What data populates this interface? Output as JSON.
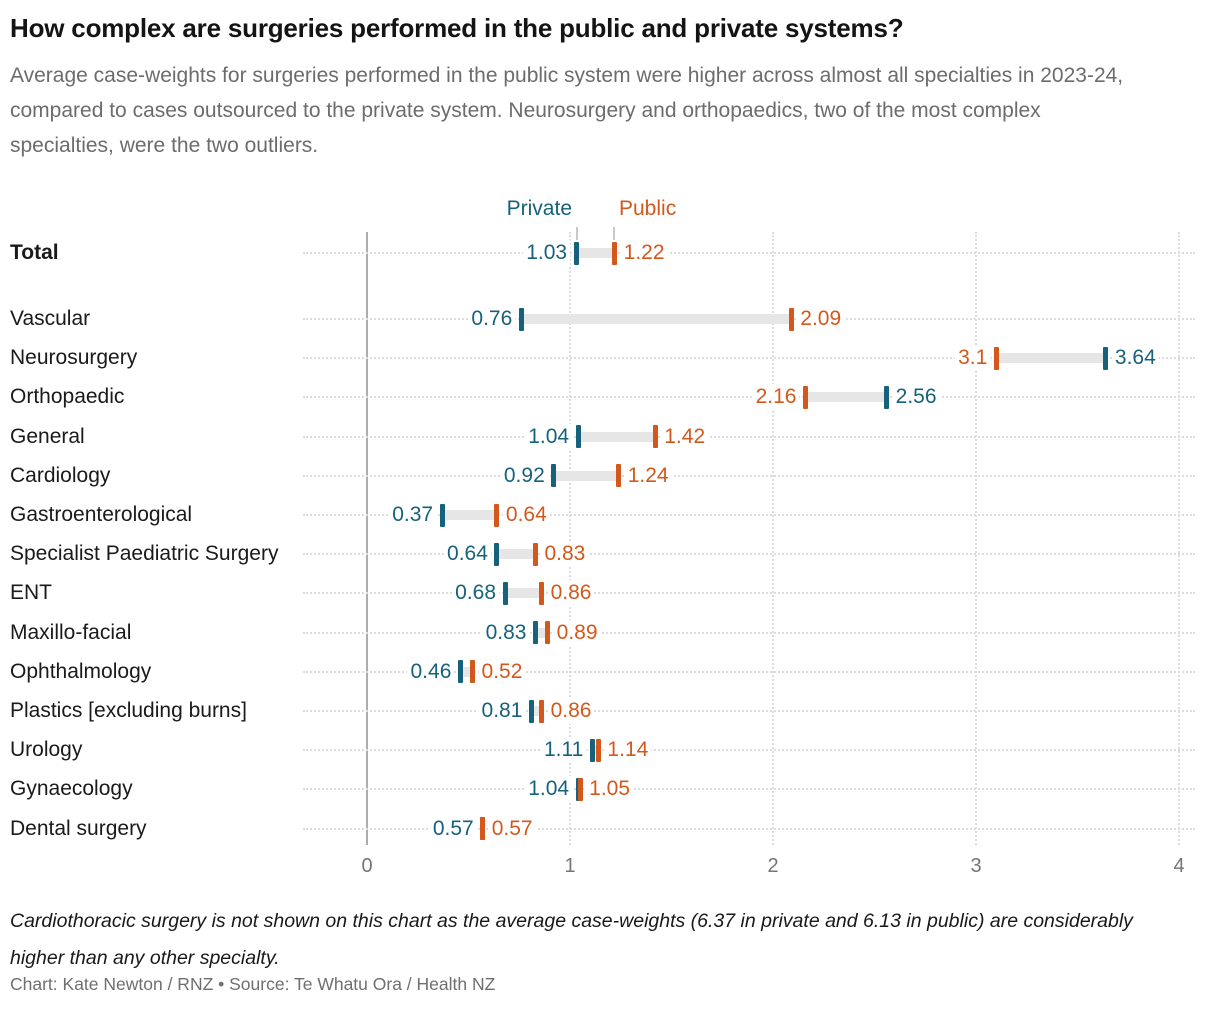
{
  "header": {
    "title": "How complex are surgeries performed in the public and private systems?",
    "subtitle": "Average case-weights for surgeries performed in the public system were higher across almost all specialties in 2023-24, compared to cases outsourced to the private system. Neurosurgery and orthopaedics, two of the most complex specialties, were the two outliers."
  },
  "legend": {
    "private_label": "Private",
    "public_label": "Public"
  },
  "chart_data": {
    "type": "dumbbell",
    "title": "How complex are surgeries performed in the public and private systems?",
    "series_names": [
      "Private",
      "Public"
    ],
    "x_axis": {
      "ticks": [
        "0",
        "1",
        "2",
        "3",
        "4"
      ],
      "tick_values": [
        0,
        1,
        2,
        3,
        4
      ],
      "range": [
        0,
        4
      ],
      "grid": "dotted"
    },
    "colors": {
      "private": "#16617c",
      "public": "#d4581c",
      "connector": "#e6e6e6"
    },
    "rows": [
      {
        "label": "Total",
        "bold": true,
        "group_gap_after": true,
        "private": 1.03,
        "public": 1.22,
        "private_display": "1.03",
        "public_display": "1.22"
      },
      {
        "label": "Vascular",
        "private": 0.76,
        "public": 2.09,
        "private_display": "0.76",
        "public_display": "2.09"
      },
      {
        "label": "Neurosurgery",
        "private": 3.64,
        "public": 3.1,
        "private_display": "3.64",
        "public_display": "3.1"
      },
      {
        "label": "Orthopaedic",
        "private": 2.56,
        "public": 2.16,
        "private_display": "2.56",
        "public_display": "2.16"
      },
      {
        "label": "General",
        "private": 1.04,
        "public": 1.42,
        "private_display": "1.04",
        "public_display": "1.42"
      },
      {
        "label": "Cardiology",
        "private": 0.92,
        "public": 1.24,
        "private_display": "0.92",
        "public_display": "1.24"
      },
      {
        "label": "Gastroenterological",
        "private": 0.37,
        "public": 0.64,
        "private_display": "0.37",
        "public_display": "0.64"
      },
      {
        "label": "Specialist Paediatric Surgery",
        "private": 0.64,
        "public": 0.83,
        "private_display": "0.64",
        "public_display": "0.83"
      },
      {
        "label": "ENT",
        "private": 0.68,
        "public": 0.86,
        "private_display": "0.68",
        "public_display": "0.86"
      },
      {
        "label": "Maxillo-facial",
        "private": 0.83,
        "public": 0.89,
        "private_display": "0.83",
        "public_display": "0.89"
      },
      {
        "label": "Ophthalmology",
        "private": 0.46,
        "public": 0.52,
        "private_display": "0.46",
        "public_display": "0.52"
      },
      {
        "label": "Plastics [excluding burns]",
        "private": 0.81,
        "public": 0.86,
        "private_display": "0.81",
        "public_display": "0.86"
      },
      {
        "label": "Urology",
        "private": 1.11,
        "public": 1.14,
        "private_display": "1.11",
        "public_display": "1.14"
      },
      {
        "label": "Gynaecology",
        "private": 1.04,
        "public": 1.05,
        "private_display": "1.04",
        "public_display": "1.05"
      },
      {
        "label": "Dental surgery",
        "private": 0.57,
        "public": 0.57,
        "private_display": "0.57",
        "public_display": "0.57"
      }
    ]
  },
  "footnote": "Cardiothoracic surgery is not shown on this chart as the average case-weights (6.37 in private and 6.13 in public) are considerably higher than any other specialty.",
  "credit": "Chart: Kate Newton / RNZ • Source: Te Whatu Ora / Health NZ"
}
